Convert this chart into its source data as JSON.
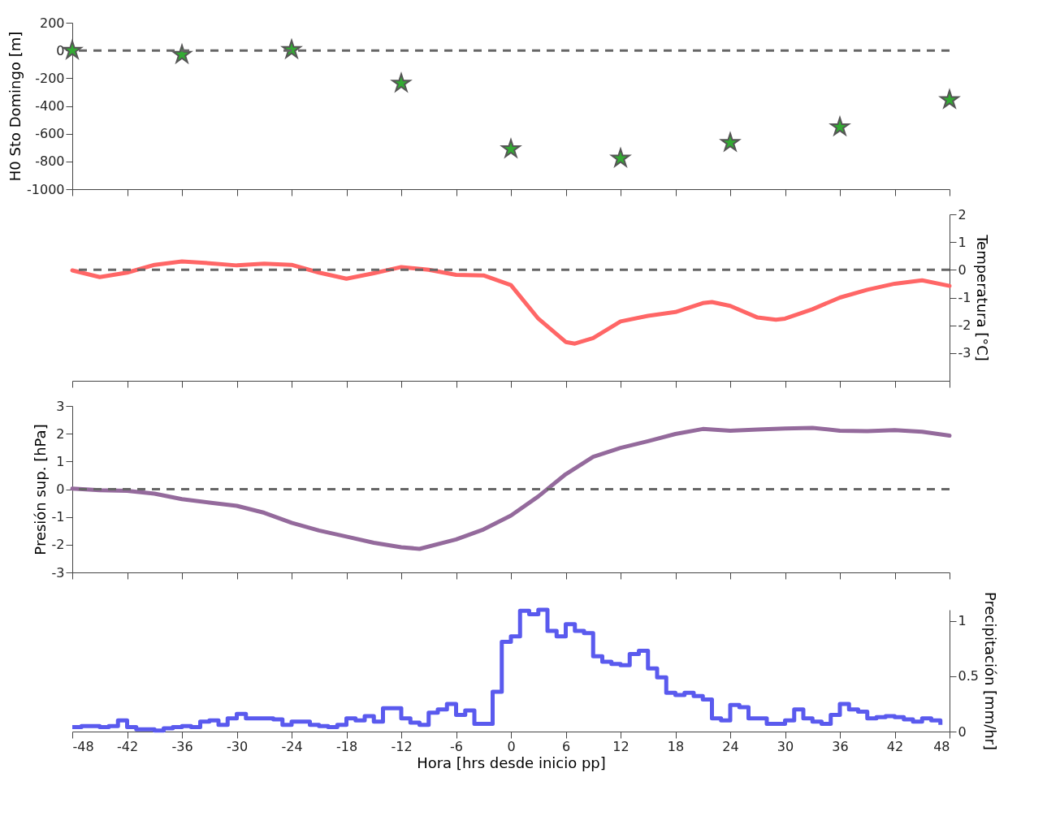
{
  "chart_data": [
    {
      "type": "scatter",
      "ylabel": "H0 Sto Domingo [m]",
      "xlim": [
        -48,
        48
      ],
      "xticks": [
        -48,
        -42,
        -36,
        -30,
        -24,
        -18,
        -12,
        -6,
        0,
        6,
        12,
        18,
        24,
        30,
        36,
        42,
        48
      ],
      "ylim": [
        -1000,
        200
      ],
      "yticks": [
        -1000,
        -800,
        -600,
        -400,
        -200,
        0,
        200
      ],
      "tick_labels": "y",
      "marker": "star",
      "x": [
        -48,
        -36,
        -24,
        -12,
        0,
        12,
        24,
        36,
        48
      ],
      "values": [
        0,
        -30,
        5,
        -237,
        -711,
        -778,
        -665,
        -552,
        -356
      ],
      "color": "#33aa33",
      "ref_lines": [
        {
          "axis": "y",
          "value": 0,
          "color": "#666666",
          "line_style": "dashed"
        }
      ]
    },
    {
      "type": "line",
      "ylabel": "Temperatura [°C]",
      "xlim": [
        -48,
        48
      ],
      "xticks": [
        -48,
        -42,
        -36,
        -30,
        -24,
        -18,
        -12,
        -6,
        0,
        6,
        12,
        18,
        24,
        30,
        36,
        42,
        48
      ],
      "ylim": [
        -4,
        2
      ],
      "yticks": [
        -3,
        -2,
        -1,
        0,
        1,
        2
      ],
      "tick_labels": "y",
      "line_style": "solid",
      "x": [
        -48,
        -45,
        -42,
        -39,
        -36,
        -33,
        -30,
        -27,
        -24,
        -21,
        -18,
        -15,
        -12,
        -9,
        -6,
        -3,
        0,
        3,
        6,
        7,
        9,
        12,
        15,
        18,
        21,
        22,
        24,
        27,
        29,
        30,
        33,
        36,
        39,
        42,
        45,
        48
      ],
      "values": [
        -0.02,
        -0.26,
        -0.1,
        0.18,
        0.3,
        0.24,
        0.16,
        0.22,
        0.18,
        -0.1,
        -0.32,
        -0.12,
        0.1,
        0,
        -0.18,
        -0.2,
        -0.55,
        -1.76,
        -2.6,
        -2.66,
        -2.46,
        -1.86,
        -1.66,
        -1.52,
        -1.2,
        -1.16,
        -1.3,
        -1.72,
        -1.8,
        -1.76,
        -1.42,
        -1.0,
        -0.72,
        -0.5,
        -0.38,
        -0.58
      ],
      "color": "#ff6666",
      "ref_lines": [
        {
          "axis": "y",
          "value": 0,
          "color": "#666666",
          "line_style": "dashed"
        }
      ]
    },
    {
      "type": "line",
      "ylabel": "Presión sup. [hPa]",
      "xlim": [
        -48,
        48
      ],
      "xticks": [
        -48,
        -42,
        -36,
        -30,
        -24,
        -18,
        -12,
        -6,
        0,
        6,
        12,
        18,
        24,
        30,
        36,
        42,
        48
      ],
      "ylim": [
        -3,
        3
      ],
      "yticks": [
        -3,
        -2,
        -1,
        0,
        1,
        2,
        3
      ],
      "tick_labels": "y",
      "line_style": "solid",
      "x": [
        -48,
        -45,
        -42,
        -39,
        -36,
        -33,
        -30,
        -27,
        -24,
        -21,
        -18,
        -15,
        -12,
        -10,
        -6,
        -3,
        0,
        3,
        6,
        9,
        12,
        15,
        18,
        21,
        24,
        27,
        30,
        33,
        36,
        39,
        42,
        45,
        48
      ],
      "values": [
        0.02,
        -0.04,
        -0.06,
        -0.16,
        -0.36,
        -0.48,
        -0.6,
        -0.85,
        -1.21,
        -1.49,
        -1.71,
        -1.93,
        -2.09,
        -2.15,
        -1.81,
        -1.45,
        -0.95,
        -0.26,
        0.54,
        1.17,
        1.49,
        1.73,
        1.99,
        2.17,
        2.11,
        2.15,
        2.19,
        2.21,
        2.11,
        2.09,
        2.13,
        2.07,
        1.93
      ],
      "color": "#946a9c",
      "ref_lines": [
        {
          "axis": "y",
          "value": 0,
          "color": "#666666",
          "line_style": "dashed"
        }
      ]
    },
    {
      "type": "step",
      "ylabel": "Precipitación [mm/hr]",
      "xlabel": "Hora [hrs desde inicio pp]",
      "xlim": [
        -48,
        48
      ],
      "xticks": [
        -48,
        -42,
        -36,
        -30,
        -24,
        -18,
        -12,
        -6,
        0,
        6,
        12,
        18,
        24,
        30,
        36,
        42,
        48
      ],
      "ylim": [
        0,
        1.1
      ],
      "yticks": [
        0,
        0.5,
        1
      ],
      "line_style": "solid",
      "x": [
        -48,
        -47,
        -46,
        -45,
        -44,
        -43,
        -42,
        -41,
        -40,
        -39,
        -38,
        -37,
        -36,
        -35,
        -34,
        -33,
        -32,
        -31,
        -30,
        -29,
        -28,
        -27,
        -26,
        -25,
        -24,
        -23,
        -22,
        -21,
        -20,
        -19,
        -18,
        -17,
        -16,
        -15,
        -14,
        -13,
        -12,
        -11,
        -10,
        -9,
        -8,
        -7,
        -6,
        -5,
        -4,
        -3,
        -2,
        -1,
        0,
        1,
        2,
        3,
        4,
        5,
        6,
        7,
        8,
        9,
        10,
        11,
        12,
        13,
        14,
        15,
        16,
        17,
        18,
        19,
        20,
        21,
        22,
        23,
        24,
        25,
        26,
        27,
        28,
        29,
        30,
        31,
        32,
        33,
        34,
        35,
        36,
        37,
        38,
        39,
        40,
        41,
        42,
        43,
        44,
        45,
        46,
        47
      ],
      "values": [
        0.04,
        0.05,
        0.05,
        0.04,
        0.05,
        0.1,
        0.04,
        0.02,
        0.02,
        0.01,
        0.03,
        0.04,
        0.05,
        0.04,
        0.09,
        0.1,
        0.06,
        0.12,
        0.16,
        0.12,
        0.12,
        0.12,
        0.11,
        0.06,
        0.09,
        0.09,
        0.06,
        0.05,
        0.04,
        0.06,
        0.12,
        0.1,
        0.14,
        0.09,
        0.21,
        0.21,
        0.12,
        0.08,
        0.06,
        0.17,
        0.2,
        0.25,
        0.15,
        0.19,
        0.07,
        0.07,
        0.36,
        0.81,
        0.86,
        1.09,
        1.06,
        1.1,
        0.91,
        0.86,
        0.97,
        0.91,
        0.89,
        0.68,
        0.63,
        0.61,
        0.6,
        0.7,
        0.73,
        0.57,
        0.49,
        0.35,
        0.33,
        0.35,
        0.32,
        0.29,
        0.12,
        0.1,
        0.24,
        0.22,
        0.12,
        0.12,
        0.07,
        0.07,
        0.1,
        0.2,
        0.12,
        0.09,
        0.07,
        0.15,
        0.25,
        0.2,
        0.18,
        0.12,
        0.13,
        0.14,
        0.13,
        0.11,
        0.09,
        0.12,
        0.1,
        0.06
      ],
      "color": "#5a5aee"
    }
  ]
}
